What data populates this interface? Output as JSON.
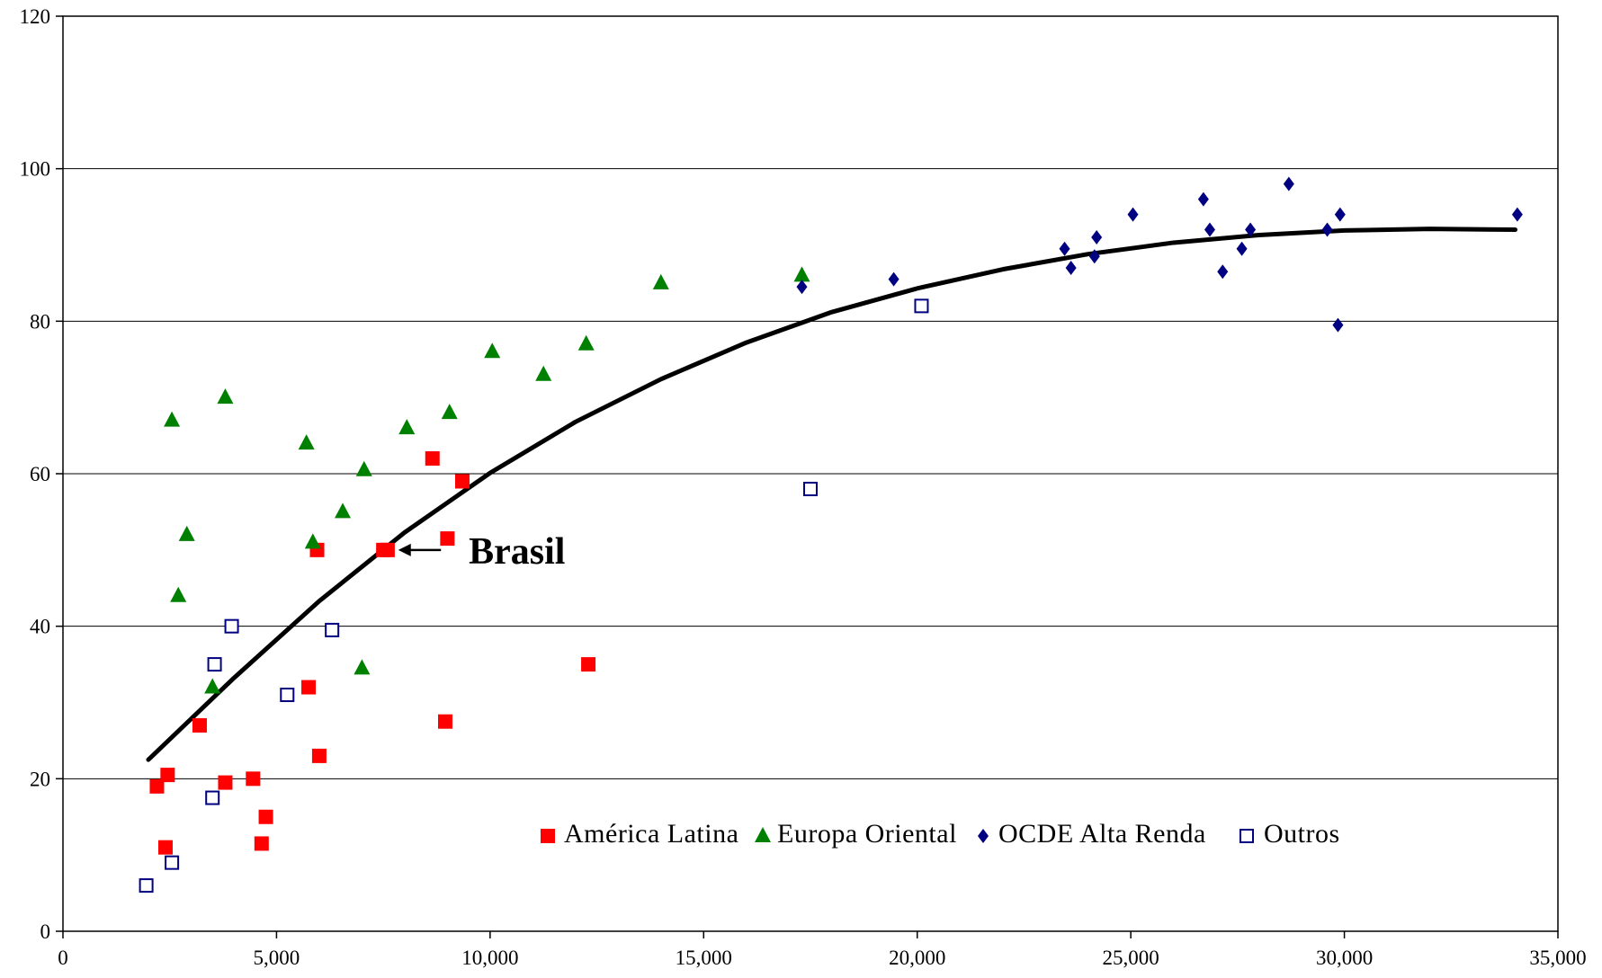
{
  "chart_data": {
    "type": "scatter",
    "title": "",
    "xlabel": "",
    "ylabel": "",
    "xlim": [
      0,
      35000
    ],
    "ylim": [
      0,
      120
    ],
    "x_ticks": [
      0,
      5000,
      10000,
      15000,
      20000,
      25000,
      30000,
      35000
    ],
    "x_tick_labels": [
      "0",
      "5,000",
      "10,000",
      "15,000",
      "20,000",
      "25,000",
      "30,000",
      "35,000"
    ],
    "y_ticks": [
      0,
      20,
      40,
      60,
      80,
      100,
      120
    ],
    "y_tick_labels": [
      "0",
      "20",
      "40",
      "60",
      "80",
      "100",
      "120"
    ],
    "grid": "horizontal",
    "legend_position": "bottom-right-inside",
    "series": [
      {
        "name": "América Latina",
        "marker": "square-filled",
        "color": "#ff0000",
        "points": [
          [
            2200,
            19
          ],
          [
            2400,
            11
          ],
          [
            2450,
            20.5
          ],
          [
            3200,
            27
          ],
          [
            3800,
            19.5
          ],
          [
            4450,
            20
          ],
          [
            4650,
            11.5
          ],
          [
            4750,
            15
          ],
          [
            5750,
            32
          ],
          [
            5950,
            50
          ],
          [
            6000,
            23
          ],
          [
            7500,
            50
          ],
          [
            7600,
            50
          ],
          [
            8650,
            62
          ],
          [
            8950,
            27.5
          ],
          [
            9000,
            51.5
          ],
          [
            9350,
            59
          ],
          [
            12300,
            35
          ]
        ]
      },
      {
        "name": "Europa Oriental",
        "marker": "triangle-filled",
        "color": "#008000",
        "points": [
          [
            2550,
            67
          ],
          [
            2700,
            44
          ],
          [
            2900,
            52
          ],
          [
            3500,
            32
          ],
          [
            3800,
            70
          ],
          [
            5700,
            64
          ],
          [
            5850,
            51
          ],
          [
            6550,
            55
          ],
          [
            7000,
            34.5
          ],
          [
            7050,
            60.5
          ],
          [
            8050,
            66
          ],
          [
            9050,
            68
          ],
          [
            10050,
            76
          ],
          [
            11250,
            73
          ],
          [
            12250,
            77
          ],
          [
            14000,
            85
          ],
          [
            17300,
            86
          ]
        ]
      },
      {
        "name": "OCDE Alta Renda",
        "marker": "diamond-filled",
        "color": "#000080",
        "points": [
          [
            17300,
            84.5
          ],
          [
            19450,
            85.5
          ],
          [
            23450,
            89.5
          ],
          [
            23600,
            87
          ],
          [
            24150,
            88.5
          ],
          [
            24200,
            91
          ],
          [
            25050,
            94
          ],
          [
            26700,
            96
          ],
          [
            26850,
            92
          ],
          [
            27150,
            86.5
          ],
          [
            27600,
            89.5
          ],
          [
            27800,
            92
          ],
          [
            28700,
            98
          ],
          [
            29600,
            92
          ],
          [
            29850,
            79.5
          ],
          [
            29900,
            94
          ],
          [
            34050,
            94
          ]
        ]
      },
      {
        "name": "Outros",
        "marker": "square-open",
        "color": "#000080",
        "points": [
          [
            1950,
            6
          ],
          [
            2550,
            9
          ],
          [
            3500,
            17.5
          ],
          [
            3550,
            35
          ],
          [
            3950,
            40
          ],
          [
            5250,
            31
          ],
          [
            6300,
            39.5
          ],
          [
            17500,
            58
          ],
          [
            20100,
            82
          ]
        ]
      }
    ],
    "trendline": {
      "type": "polynomial",
      "color": "#000000",
      "points": [
        [
          2000,
          22.5
        ],
        [
          4000,
          33.2
        ],
        [
          6000,
          43.3
        ],
        [
          8000,
          52.3
        ],
        [
          10000,
          60.1
        ],
        [
          12000,
          66.8
        ],
        [
          14000,
          72.4
        ],
        [
          16000,
          77.2
        ],
        [
          18000,
          81.2
        ],
        [
          20000,
          84.3
        ],
        [
          22000,
          86.8
        ],
        [
          24000,
          88.8
        ],
        [
          26000,
          90.3
        ],
        [
          28000,
          91.3
        ],
        [
          30000,
          91.9
        ],
        [
          32000,
          92.1
        ],
        [
          34000,
          92.0
        ]
      ]
    },
    "annotations": [
      {
        "label": "Brasil",
        "text_x": 9500,
        "text_y": 50,
        "arrow_from_x": 8850,
        "arrow_to_x": 7850,
        "arrow_y": 50
      }
    ]
  }
}
